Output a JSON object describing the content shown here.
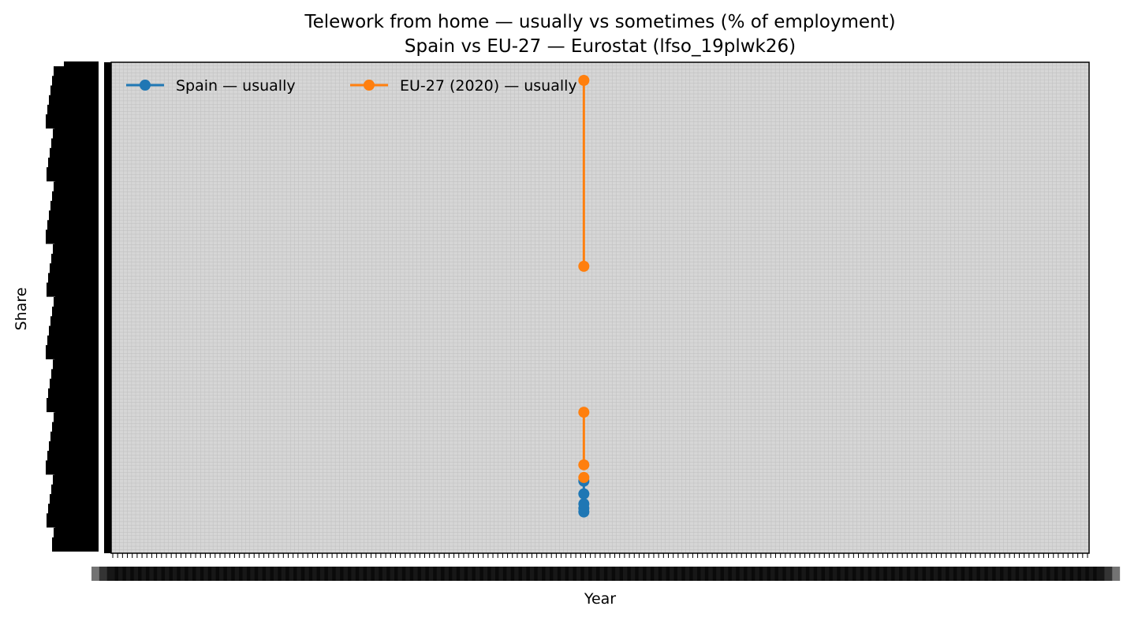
{
  "chart_data": {
    "type": "line",
    "title": "Telework from home — usually vs sometimes (% of employment)",
    "subtitle": "Spain vs EU-27 — Eurostat (lfso_19plwk26)",
    "xlabel": "Year",
    "ylabel": "Share",
    "grid": true,
    "legend_position": "top-left",
    "series": [
      {
        "name": "Spain — usually",
        "color": "#1f77b4",
        "points": [
          {
            "x": 2019,
            "y": 4.8
          },
          {
            "x": 2019,
            "y": 5.6
          },
          {
            "x": 2019,
            "y": 6.6
          },
          {
            "x": 2019,
            "y": 8.8
          },
          {
            "x": 2019,
            "y": 11.6
          }
        ]
      },
      {
        "name": "EU-27 (2020) — usually",
        "color": "#ff7f0e",
        "points": [
          {
            "x": 2019,
            "y": 100.0
          },
          {
            "x": 2019,
            "y": 59.0
          },
          {
            "x": 2019,
            "y": 26.8
          },
          {
            "x": 2019,
            "y": 15.2
          },
          {
            "x": 2019,
            "y": 12.4
          }
        ]
      }
    ]
  }
}
